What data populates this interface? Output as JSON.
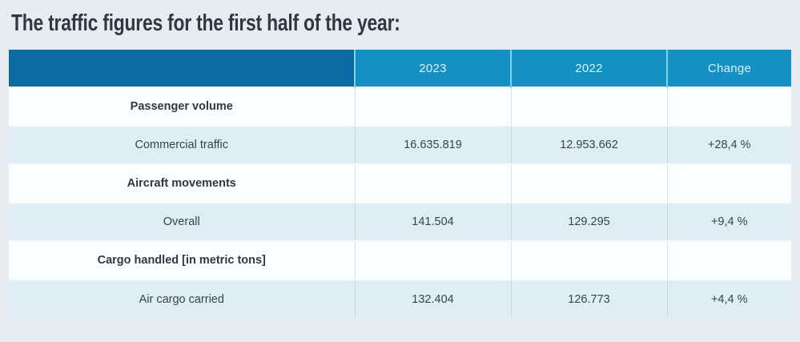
{
  "title": "The traffic figures for the first half of the year:",
  "colors": {
    "page_background": "#e7ecf0",
    "header_dark_blue": "#0a6aa1",
    "header_light_blue": "#1590c2",
    "header_divider_cyan": "#7fd4ea",
    "header_text": "#d8f2f9",
    "row_white": "#fcfdfe",
    "row_light_blue": "#dfeef5",
    "body_text": "#39424b"
  },
  "table": {
    "columns": [
      "",
      "2023",
      "2022",
      "Change"
    ],
    "rows": [
      {
        "type": "category",
        "label": "Passenger volume",
        "v2023": "",
        "v2022": "",
        "change": ""
      },
      {
        "type": "data",
        "label": "Commercial traffic",
        "v2023": "16.635.819",
        "v2022": "12.953.662",
        "change": "+28,4 %"
      },
      {
        "type": "category",
        "label": "Aircraft movements",
        "v2023": "",
        "v2022": "",
        "change": ""
      },
      {
        "type": "data",
        "label": "Overall",
        "v2023": "141.504",
        "v2022": "129.295",
        "change": "+9,4 %"
      },
      {
        "type": "category",
        "label": "Cargo handled [in metric tons]",
        "v2023": "",
        "v2022": "",
        "change": ""
      },
      {
        "type": "data",
        "label": "Air cargo carried",
        "v2023": "132.404",
        "v2022": "126.773",
        "change": "+4,4 %"
      }
    ]
  }
}
